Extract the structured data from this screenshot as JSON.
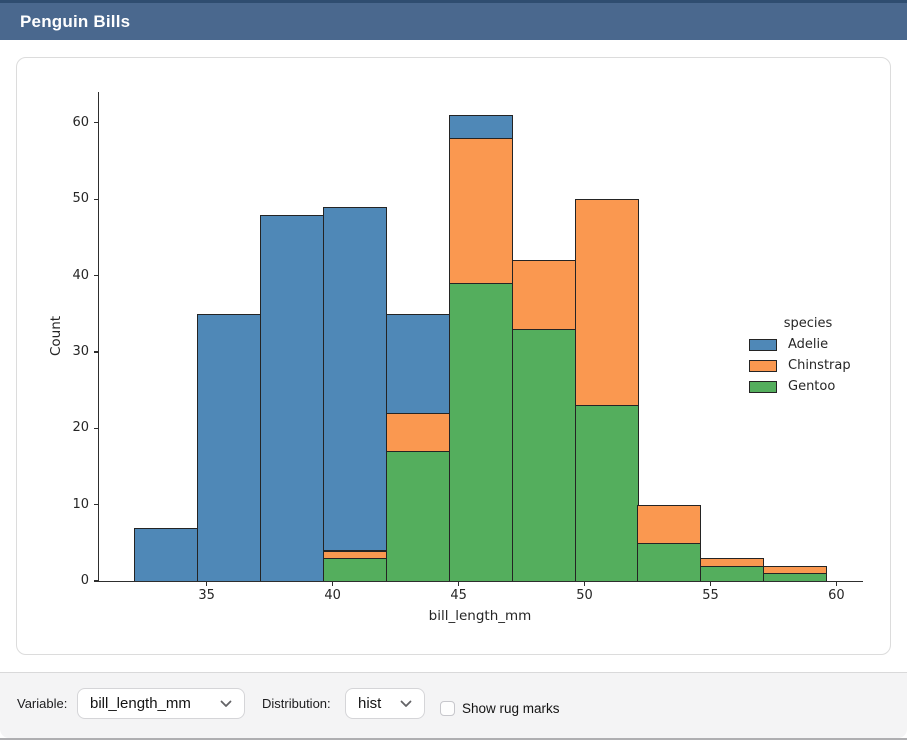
{
  "titlebar": {
    "title": "Penguin Bills"
  },
  "chart_data": {
    "type": "bar",
    "mode": "stacked-histogram",
    "title": "",
    "xlabel": "bill_length_mm",
    "ylabel": "Count",
    "xlim": [
      30.725,
      60.975
    ],
    "ylim": [
      0,
      64.05
    ],
    "xticks": [
      35,
      40,
      45,
      50,
      55,
      60
    ],
    "yticks": [
      0,
      10,
      20,
      30,
      40,
      50,
      60
    ],
    "grid": false,
    "legend_title": "species",
    "legend_position": "center-right",
    "series": [
      {
        "name": "Adelie",
        "color": "#4f88b7"
      },
      {
        "name": "Chinstrap",
        "color": "#fa9850"
      },
      {
        "name": "Gentoo",
        "color": "#54ae5d"
      }
    ],
    "stack_order": [
      "Gentoo",
      "Chinstrap",
      "Adelie"
    ],
    "bin_edges": [
      32.1,
      34.6,
      37.1,
      39.6,
      42.1,
      44.6,
      47.1,
      49.6,
      52.1,
      54.6,
      57.1,
      59.6
    ],
    "counts": {
      "Adelie": [
        7,
        35,
        48,
        45,
        13,
        3,
        0,
        0,
        0,
        0,
        0
      ],
      "Chinstrap": [
        0,
        0,
        0,
        1,
        5,
        19,
        9,
        27,
        5,
        1,
        1
      ],
      "Gentoo": [
        0,
        0,
        0,
        3,
        17,
        39,
        33,
        23,
        5,
        2,
        1
      ]
    },
    "bin_totals": [
      7,
      35,
      48,
      49,
      35,
      61,
      42,
      50,
      10,
      3,
      2
    ],
    "bar_edge_color": "#242424"
  },
  "controls": {
    "variable_label": "Variable:",
    "variable_value": "bill_length_mm",
    "distribution_label": "Distribution:",
    "distribution_value": "hist",
    "rug_label": "Show rug marks",
    "rug_checked": false
  }
}
